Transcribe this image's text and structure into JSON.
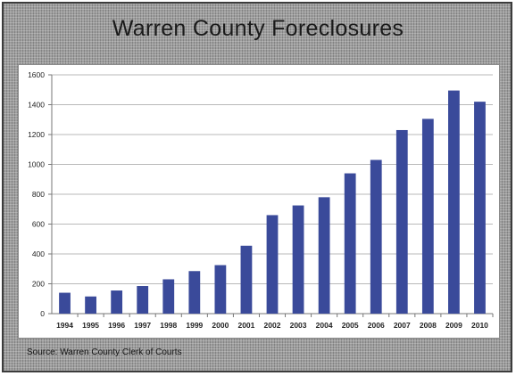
{
  "chart_data": {
    "type": "bar",
    "title": "Warren County Foreclosures",
    "xlabel": "",
    "ylabel": "",
    "categories": [
      "1994",
      "1995",
      "1996",
      "1997",
      "1998",
      "1999",
      "2000",
      "2001",
      "2002",
      "2003",
      "2004",
      "2005",
      "2006",
      "2007",
      "2008",
      "2009",
      "2010"
    ],
    "values": [
      140,
      115,
      155,
      185,
      230,
      285,
      325,
      455,
      660,
      725,
      780,
      940,
      1030,
      1230,
      1305,
      1495,
      1420
    ],
    "ylim": [
      0,
      1600
    ],
    "yticks": [
      "0",
      "200",
      "400",
      "600",
      "800",
      "1000",
      "1200",
      "1400",
      "1600"
    ],
    "grid": true,
    "legend": "none",
    "bar_color": "#3a4a9a",
    "source": "Source: Warren County Clerk of Courts"
  }
}
